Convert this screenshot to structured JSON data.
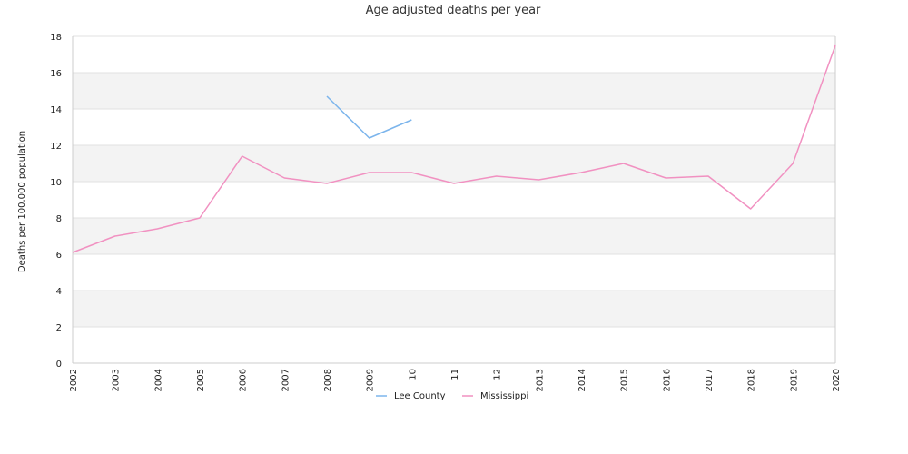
{
  "chart_data": {
    "type": "line",
    "title": "Age adjusted deaths per year",
    "ylabel": "Deaths per 100,000 population",
    "xlabel": "",
    "ylim": [
      0,
      18
    ],
    "yticks": [
      0,
      2,
      4,
      6,
      8,
      10,
      12,
      14,
      16,
      18
    ],
    "categories": [
      "2002",
      "2003",
      "2004",
      "2005",
      "2006",
      "2007",
      "2008",
      "2009",
      "2010",
      "2011",
      "2012",
      "2013",
      "2014",
      "2015",
      "2016",
      "2017",
      "2018",
      "2019",
      "2020"
    ],
    "x_tick_labels": [
      "2002",
      "2003",
      "2004",
      "2005",
      "2006",
      "2007",
      "2008",
      "2009",
      "10",
      "11",
      "12",
      "2013",
      "2014",
      "2015",
      "2016",
      "2017",
      "2018",
      "2019",
      "2020"
    ],
    "grid": true,
    "legend_position": "bottom",
    "series": [
      {
        "name": "Lee County",
        "color": "#7cb5ec",
        "values": [
          null,
          null,
          null,
          null,
          null,
          null,
          14.7,
          12.4,
          13.4,
          null,
          null,
          null,
          null,
          null,
          null,
          null,
          null,
          null,
          null
        ]
      },
      {
        "name": "Mississippi",
        "color": "#f191c1",
        "values": [
          6.1,
          7.0,
          7.4,
          8.0,
          11.4,
          10.2,
          9.9,
          10.5,
          10.5,
          9.9,
          10.3,
          10.1,
          10.5,
          11.0,
          10.2,
          10.3,
          8.5,
          11.0,
          17.5
        ]
      }
    ]
  }
}
